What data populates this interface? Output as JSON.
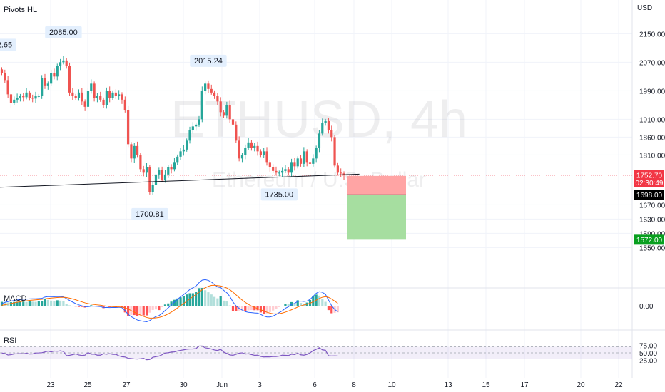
{
  "indicator": "Pivots HL",
  "currency": "USD",
  "watermark": {
    "symbol": "ETHUSD, 4h",
    "description": "Ethereum / U.S. Dollar"
  },
  "pivots": [
    {
      "text": "2.65",
      "index": 0,
      "kind": "high"
    },
    {
      "text": "2085.00",
      "index": 20,
      "kind": "high"
    },
    {
      "text": "2015.24",
      "index": 67,
      "kind": "high"
    },
    {
      "text": "1700.81",
      "index": 48,
      "kind": "low"
    },
    {
      "text": "1735.00",
      "index": 90,
      "kind": "low"
    }
  ],
  "price_tags": [
    {
      "text": "1752.70",
      "sub": "02:30:49",
      "price": 1752.7,
      "bg": "#f23645",
      "fg": "#ffffff"
    },
    {
      "text": "1751.00",
      "price": 1751.0,
      "bg": "#ff0000",
      "fg": "#ffffff"
    },
    {
      "text": "1698.00",
      "price": 1698.0,
      "bg": "#000000",
      "fg": "#ffffff"
    },
    {
      "text": "1572.00",
      "price": 1572.0,
      "bg": "#089f1f",
      "fg": "#ffffff"
    }
  ],
  "macd": {
    "title": "MACD",
    "axis_label": "0.00"
  },
  "rsi": {
    "title": "RSI",
    "upper": 70,
    "lower": 30,
    "ticks": [
      "75.00",
      "50.00",
      "25.00"
    ]
  },
  "colors": {
    "up": "#26a69a",
    "down": "#ef5350",
    "macd_line": "#2962ff",
    "signal_line": "#ff6d00",
    "rsi_line": "#7e57c2",
    "stop_zone": "#ffa4a4",
    "target_zone": "#a6dea0"
  },
  "chart_data": {
    "type": "candlestick",
    "symbol": "ETHUSD",
    "interval": "4h",
    "ylim": [
      1530,
      2170
    ],
    "y_ticks": [
      2150,
      2070,
      1990,
      1910,
      1860,
      1810,
      1670,
      1630,
      1590,
      1550
    ],
    "x_ticks": [
      "23",
      "25",
      "27",
      "30",
      "Jun",
      "3",
      "6",
      "8",
      "10",
      "13",
      "15",
      "17",
      "20",
      "22"
    ],
    "close": [
      2040,
      2020,
      1980,
      1955,
      1965,
      1970,
      1975,
      1972,
      1985,
      1970,
      1968,
      1975,
      1975,
      2025,
      2005,
      2010,
      2040,
      2030,
      2060,
      2070,
      2075,
      2060,
      1985,
      1975,
      1970,
      1985,
      1960,
      1945,
      1990,
      2010,
      1970,
      1975,
      1965,
      1950,
      1990,
      1970,
      1985,
      1975,
      1980,
      1965,
      1935,
      1840,
      1800,
      1835,
      1810,
      1770,
      1760,
      1775,
      1705,
      1725,
      1755,
      1768,
      1740,
      1755,
      1775,
      1770,
      1790,
      1805,
      1820,
      1825,
      1850,
      1880,
      1890,
      1895,
      1910,
      1990,
      2010,
      1995,
      1985,
      1975,
      1960,
      1930,
      1920,
      1950,
      1910,
      1895,
      1850,
      1800,
      1810,
      1830,
      1845,
      1830,
      1835,
      1820,
      1810,
      1820,
      1790,
      1775,
      1765,
      1760,
      1760,
      1765,
      1770,
      1760,
      1790,
      1778,
      1800,
      1785,
      1820,
      1790,
      1785,
      1800,
      1830,
      1870,
      1900,
      1905,
      1880,
      1860,
      1780,
      1760,
      1758,
      1752.7
    ],
    "macd_hist": [
      0.32,
      0.31,
      0.27,
      0.29,
      0.31,
      0.33,
      0.34,
      0.34,
      0.31,
      0.36,
      0.33,
      0.32,
      0.36,
      0.37,
      0.55,
      0.48,
      0.42,
      0.41,
      0.45,
      0.42,
      0.38,
      0.16,
      0.03,
      0.0,
      -0.07,
      -0.1,
      -0.1,
      -0.15,
      -0.04,
      0.04,
      -0.03,
      -0.04,
      -0.07,
      -0.2,
      -0.06,
      -0.11,
      -0.06,
      -0.09,
      -0.05,
      -0.14,
      -0.55,
      -0.82,
      -0.76,
      -0.77,
      -0.86,
      -0.78,
      -0.8,
      -0.8,
      -0.57,
      -0.35,
      -0.3,
      -0.36,
      -0.12,
      0.1,
      0.19,
      0.34,
      0.49,
      0.6,
      0.69,
      0.77,
      0.93,
      1.03,
      1.03,
      1.12,
      1.45,
      1.47,
      1.28,
      1.11,
      0.93,
      0.73,
      0.61,
      0.79,
      0.42,
      0.35,
      0.02,
      -0.42,
      -0.43,
      -0.4,
      -0.39,
      -0.45,
      -0.38,
      -0.36,
      -0.37,
      -0.37,
      -0.55,
      -0.66,
      -0.63,
      -0.52,
      -0.39,
      -0.24,
      -0.11,
      -0.05,
      0.16,
      0.12,
      0.3,
      0.22,
      0.45,
      0.23,
      0.17,
      0.26,
      0.47,
      0.78,
      0.92,
      0.83,
      0.56,
      0.32,
      -0.36,
      -0.62,
      -0.58,
      -0.54
    ],
    "rsi": [
      49.6,
      47.7,
      42.8,
      43.9,
      46.5,
      46.9,
      47.5,
      46.7,
      48.7,
      46.0,
      46.5,
      49.5,
      49.8,
      50.5,
      52.9,
      55.8,
      53.2,
      56.0,
      55.2,
      56.8,
      54.6,
      40.8,
      41.9,
      44.1,
      46.6,
      43.0,
      41.3,
      42.4,
      51.0,
      45.6,
      45.7,
      42.4,
      42.3,
      47.0,
      45.5,
      47.5,
      45.0,
      45.3,
      40.1,
      37.3,
      36.3,
      32.2,
      31.1,
      30.2,
      29.6,
      30.7,
      32.2,
      27.3,
      28.1,
      35.4,
      37.5,
      39.4,
      43.8,
      49.4,
      50.4,
      52.6,
      53.3,
      56.4,
      58.3,
      60.0,
      61.9,
      62.8,
      63.0,
      64.1,
      72.5,
      72.8,
      66.6,
      65.2,
      62.7,
      59.5,
      58.0,
      61.5,
      52.5,
      48.0,
      43.0,
      42.0,
      45.1,
      48.9,
      50.1,
      46.2,
      46.9,
      44.4,
      41.9,
      42.4,
      38.0,
      36.5,
      37.1,
      36.6,
      38.0,
      37.8,
      39.3,
      42.4,
      41.8,
      41.1,
      45.6,
      44.4,
      48.6,
      43.5,
      42.4,
      44.8,
      49.7,
      57.6,
      61.7,
      66.8,
      60.0,
      58.6,
      40.5,
      39.7,
      40.2,
      39.9
    ],
    "trendline": [
      [
        -4,
        1718
      ],
      [
        116,
        1756
      ]
    ],
    "position": {
      "entry": 1698,
      "stop": 1751,
      "target": 1572
    }
  }
}
